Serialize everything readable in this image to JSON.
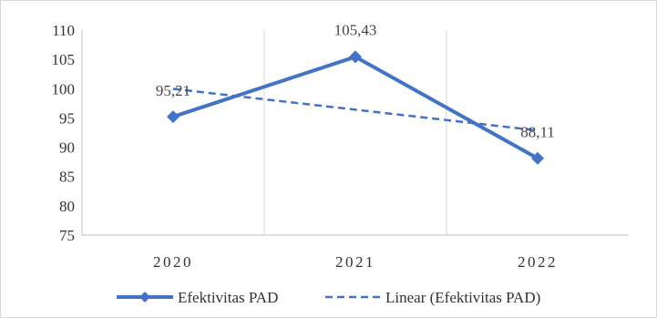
{
  "chart_data": {
    "type": "line",
    "categories": [
      "2020",
      "2021",
      "2022"
    ],
    "series": [
      {
        "name": "Efektivitas PAD",
        "values": [
          95.21,
          105.43,
          88.11
        ],
        "data_labels": [
          "95,21",
          "105,43",
          "88,11"
        ],
        "color": "#4472C4",
        "style": "solid",
        "marker": "diamond"
      },
      {
        "name": "Linear (Efektivitas PAD)",
        "values": [
          99.96,
          96.41,
          92.86
        ],
        "color": "#4472C4",
        "style": "dashed",
        "marker": "none"
      }
    ],
    "y_ticks": [
      "110",
      "105",
      "100",
      "95",
      "90",
      "85",
      "80",
      "75"
    ],
    "ylim": [
      75,
      110
    ],
    "grid": "vertical",
    "legend_position": "bottom"
  }
}
